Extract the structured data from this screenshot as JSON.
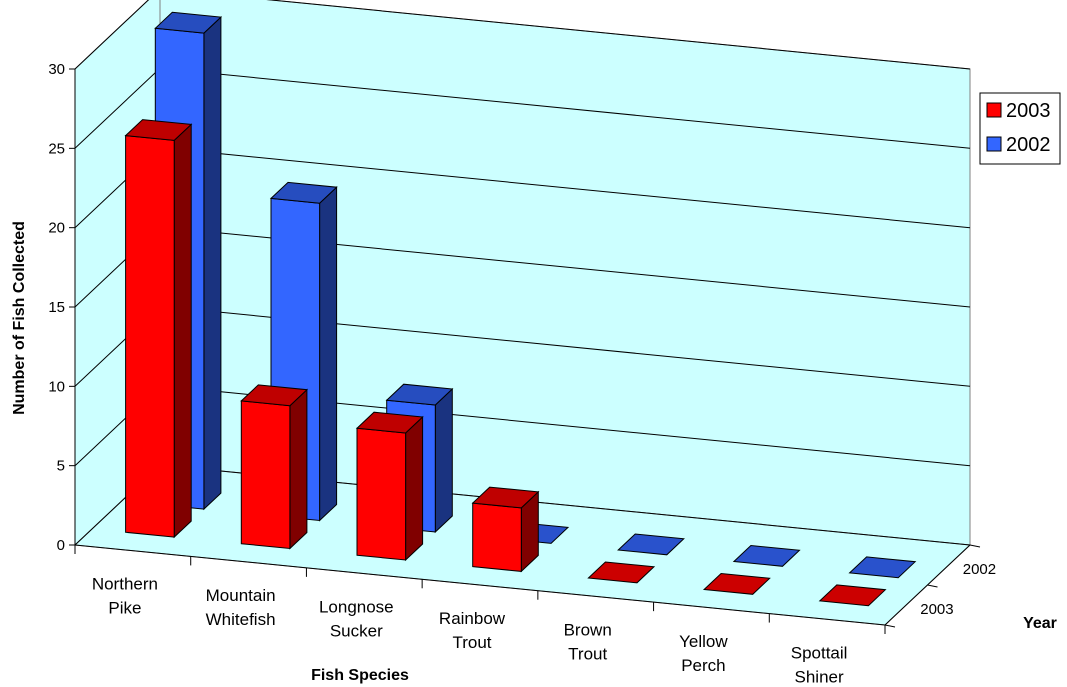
{
  "chart_data": {
    "type": "bar",
    "subtype": "3d-clustered-depth",
    "categories": [
      [
        "Northern",
        "Pike"
      ],
      [
        "Mountain",
        "Whitefish"
      ],
      [
        "Longnose",
        "Sucker"
      ],
      [
        "Rainbow",
        "Trout"
      ],
      [
        "Brown",
        "Trout"
      ],
      [
        "Yellow",
        "Perch"
      ],
      [
        "Spottail",
        "Shiner"
      ]
    ],
    "series": [
      {
        "name": "2003",
        "color": "#ff0000",
        "values": [
          25,
          9,
          8,
          4,
          0,
          0,
          0
        ]
      },
      {
        "name": "2002",
        "color": "#3366ff",
        "values": [
          30,
          20,
          8,
          0,
          0,
          0,
          0
        ]
      }
    ],
    "xlabel": "Fish Species",
    "ylabel": "Number of Fish Collected",
    "zlabel": "Year",
    "depth_labels": [
      "2002",
      "2003"
    ],
    "ylim": [
      0,
      30
    ],
    "yticks": [
      0,
      5,
      10,
      15,
      20,
      25,
      30
    ],
    "grid": true,
    "wall_color": "#ccffff",
    "legend": {
      "position": "right",
      "entries": [
        "2003",
        "2002"
      ]
    }
  }
}
